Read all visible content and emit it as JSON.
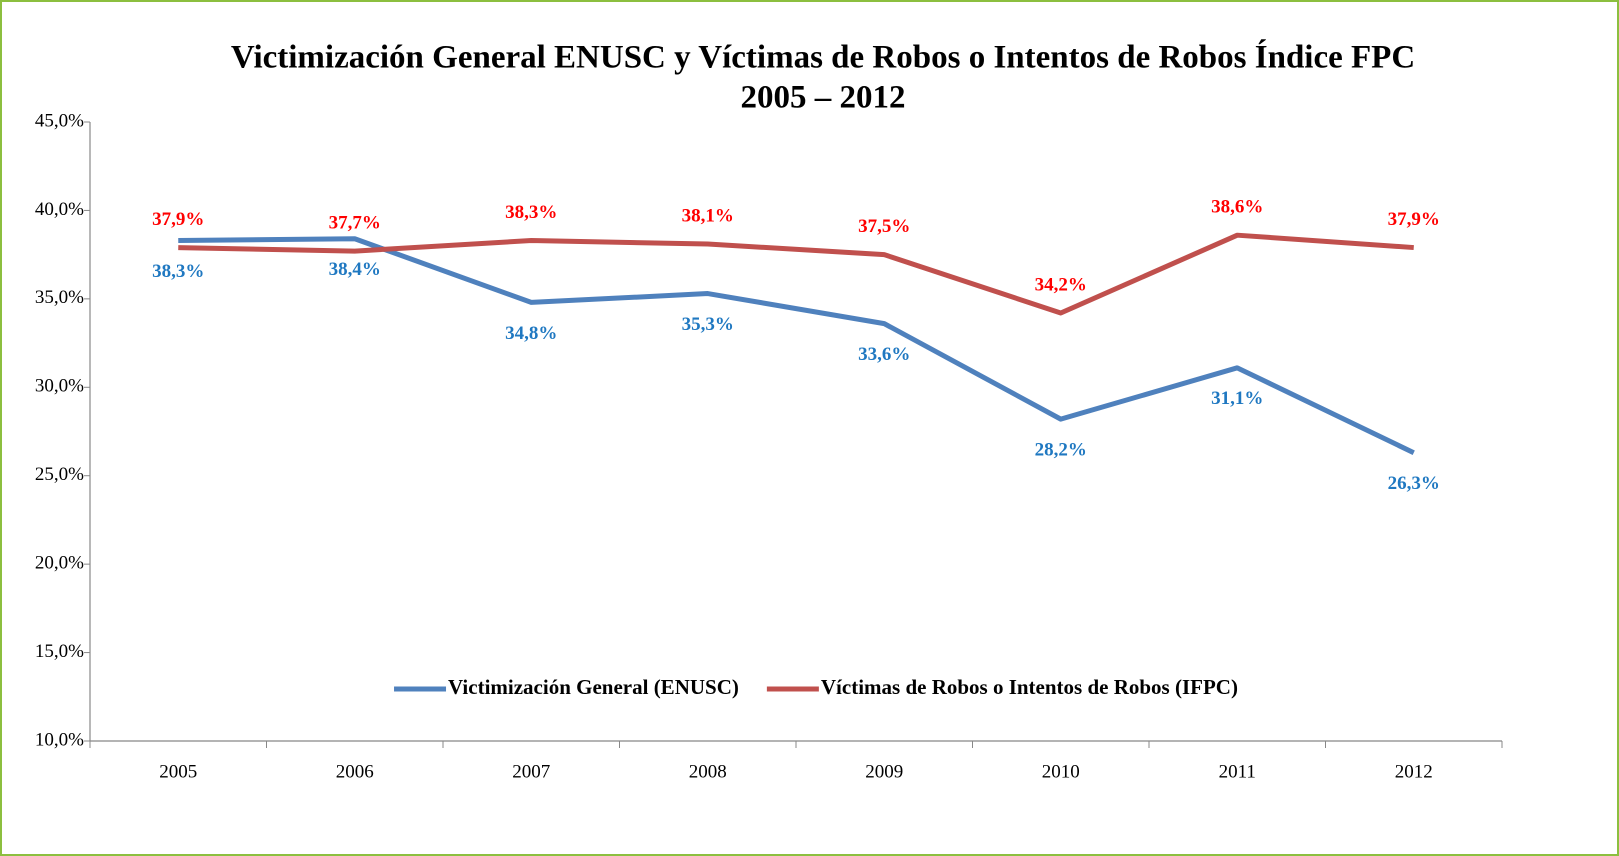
{
  "chart_data": {
    "type": "line",
    "title": "Victimización General ENUSC y Víctimas de Robos o Intentos de Robos Índice FPC",
    "subtitle": "2005 – 2012",
    "categories": [
      "2005",
      "2006",
      "2007",
      "2008",
      "2009",
      "2010",
      "2011",
      "2012"
    ],
    "series": [
      {
        "name": "Victimización General (ENUSC)",
        "color": "#4f81bd",
        "label_color": "#1f78c1",
        "values": [
          38.3,
          38.4,
          34.8,
          35.3,
          33.6,
          28.2,
          31.1,
          26.3
        ],
        "value_labels": [
          "38,3%",
          "38,4%",
          "34,8%",
          "35,3%",
          "33,6%",
          "28,2%",
          "31,1%",
          "26,3%"
        ]
      },
      {
        "name": "Víctimas de Robos o Intentos de Robos (IFPC)",
        "color": "#c0504d",
        "label_color": "#ff0000",
        "values": [
          37.9,
          37.7,
          38.3,
          38.1,
          37.5,
          34.2,
          38.6,
          37.9
        ],
        "value_labels": [
          "37,9%",
          "37,7%",
          "38,3%",
          "38,1%",
          "37,5%",
          "34,2%",
          "38,6%",
          "37,9%"
        ]
      }
    ],
    "ylim": [
      10,
      45
    ],
    "yticks": [
      {
        "value": 10,
        "label": "10,0%"
      },
      {
        "value": 15,
        "label": "15,0%"
      },
      {
        "value": 20,
        "label": "20,0%"
      },
      {
        "value": 25,
        "label": "25,0%"
      },
      {
        "value": 30,
        "label": "30,0%"
      },
      {
        "value": 35,
        "label": "35,0%"
      },
      {
        "value": 40,
        "label": "40,0%"
      },
      {
        "value": 45,
        "label": "45,0%"
      }
    ],
    "legend": "bottom",
    "grid": false
  }
}
